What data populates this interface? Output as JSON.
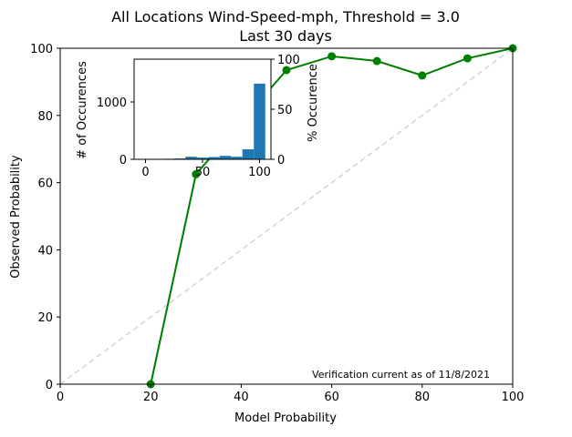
{
  "chart_data": [
    {
      "type": "line",
      "title": "All Locations Wind-Speed-mph, Threshold = 3.0",
      "subtitle": "Last 30 days",
      "xlabel": "Model Probability",
      "ylabel": "Observed Probability",
      "xlim": [
        0,
        100
      ],
      "ylim": [
        0,
        100
      ],
      "xticks": [
        0,
        20,
        40,
        60,
        80,
        100
      ],
      "yticks": [
        0,
        20,
        40,
        60,
        80,
        100
      ],
      "grid": false,
      "series": [
        {
          "color": "#008000",
          "x": [
            20,
            30,
            40,
            50,
            60,
            70,
            80,
            90,
            100
          ],
          "y": [
            0,
            62.5,
            78,
            93.5,
            97.6,
            96.2,
            91.9,
            97,
            100
          ]
        },
        {
          "color": "#a7c0d8",
          "x": [
            20,
            30
          ],
          "y": [
            0,
            62.5
          ]
        },
        {
          "color": "#d3d3d3",
          "style": "dashed",
          "x": [
            0,
            100
          ],
          "y": [
            0,
            100
          ]
        }
      ],
      "annotation": "Verification current as of 11/8/2021"
    },
    {
      "type": "bar",
      "ylabel": "# of Occurences",
      "y2label": "% Occurence",
      "xlim": [
        -10,
        110
      ],
      "ylim": [
        0,
        1746
      ],
      "y2lim": [
        0,
        100
      ],
      "xticks": [
        0,
        50,
        100
      ],
      "yticks": [
        0,
        1000
      ],
      "y2ticks": [
        0,
        50,
        100
      ],
      "color": "#1f77b4",
      "bins": [
        [
          15,
          25
        ],
        [
          25,
          35
        ],
        [
          35,
          45
        ],
        [
          45,
          55
        ],
        [
          55,
          65
        ],
        [
          65,
          75
        ],
        [
          75,
          85
        ],
        [
          85,
          95
        ],
        [
          95,
          105
        ]
      ],
      "values": [
        10,
        15,
        45,
        30,
        40,
        60,
        45,
        175,
        1320
      ]
    }
  ]
}
